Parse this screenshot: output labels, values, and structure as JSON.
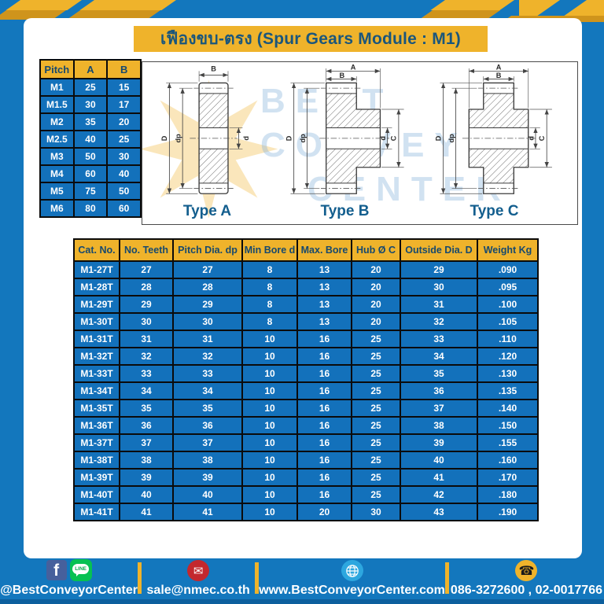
{
  "title": "เฟืองขบ-ตรง (Spur Gears Module : M1)",
  "colors": {
    "primary_blue": "#1377bd",
    "table_blue": "#1371bb",
    "accent_yellow": "#efb32b",
    "navy_text": "#17496e"
  },
  "watermark": {
    "lines": [
      "BEST",
      "CONVEYOR",
      "CENTER"
    ]
  },
  "pitch_table": {
    "headers": [
      "Pitch",
      "A",
      "B"
    ],
    "rows": [
      [
        "M1",
        "25",
        "15"
      ],
      [
        "M1.5",
        "30",
        "17"
      ],
      [
        "M2",
        "35",
        "20"
      ],
      [
        "M2.5",
        "40",
        "25"
      ],
      [
        "M3",
        "50",
        "30"
      ],
      [
        "M4",
        "60",
        "40"
      ],
      [
        "M5",
        "75",
        "50"
      ],
      [
        "M6",
        "80",
        "60"
      ]
    ]
  },
  "drawings": {
    "type_a": {
      "label": "Type A",
      "dims": {
        "b": "B",
        "outside": "D",
        "pitch": "dp",
        "bore": "d"
      }
    },
    "type_b": {
      "label": "Type B",
      "dims": {
        "a": "A",
        "b": "B",
        "outside": "D",
        "pitch": "dp",
        "bore": "d",
        "hub": "C"
      }
    },
    "type_c": {
      "label": "Type C",
      "dims": {
        "a": "A",
        "b": "B",
        "outside": "D",
        "pitch": "dp",
        "bore": "d",
        "hub": "C"
      }
    }
  },
  "gear_table": {
    "headers": [
      "Cat. No.",
      "No. Teeth",
      "Pitch Dia. dp",
      "Min Bore d",
      "Max. Bore",
      "Hub Ø C",
      "Outside Dia. D",
      "Weight Kg"
    ],
    "rows": [
      [
        "M1-27T",
        "27",
        "27",
        "8",
        "13",
        "20",
        "29",
        ".090"
      ],
      [
        "M1-28T",
        "28",
        "28",
        "8",
        "13",
        "20",
        "30",
        ".095"
      ],
      [
        "M1-29T",
        "29",
        "29",
        "8",
        "13",
        "20",
        "31",
        ".100"
      ],
      [
        "M1-30T",
        "30",
        "30",
        "8",
        "13",
        "20",
        "32",
        ".105"
      ],
      [
        "M1-31T",
        "31",
        "31",
        "10",
        "16",
        "25",
        "33",
        ".110"
      ],
      [
        "M1-32T",
        "32",
        "32",
        "10",
        "16",
        "25",
        "34",
        ".120"
      ],
      [
        "M1-33T",
        "33",
        "33",
        "10",
        "16",
        "25",
        "35",
        ".130"
      ],
      [
        "M1-34T",
        "34",
        "34",
        "10",
        "16",
        "25",
        "36",
        ".135"
      ],
      [
        "M1-35T",
        "35",
        "35",
        "10",
        "16",
        "25",
        "37",
        ".140"
      ],
      [
        "M1-36T",
        "36",
        "36",
        "10",
        "16",
        "25",
        "38",
        ".150"
      ],
      [
        "M1-37T",
        "37",
        "37",
        "10",
        "16",
        "25",
        "39",
        ".155"
      ],
      [
        "M1-38T",
        "38",
        "38",
        "10",
        "16",
        "25",
        "40",
        ".160"
      ],
      [
        "M1-39T",
        "39",
        "39",
        "10",
        "16",
        "25",
        "41",
        ".170"
      ],
      [
        "M1-40T",
        "40",
        "40",
        "10",
        "16",
        "25",
        "42",
        ".180"
      ],
      [
        "M1-41T",
        "41",
        "41",
        "10",
        "20",
        "30",
        "43",
        ".190"
      ]
    ]
  },
  "footer": {
    "facebook_letter": "f",
    "line_text": "LINE",
    "social_handle": "@BestConveyorCenter",
    "email": "sale@nmec.co.th",
    "website": "www.BestConveyorCenter.com",
    "phones": "086-3272600 , 02-0017766"
  }
}
